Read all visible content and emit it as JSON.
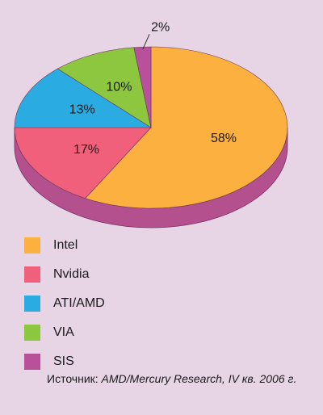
{
  "chart_data": {
    "type": "pie",
    "categories": [
      "Intel",
      "Nvidia",
      "ATI/AMD",
      "VIA",
      "SIS"
    ],
    "values": [
      58,
      17,
      13,
      10,
      2
    ],
    "value_labels": [
      "58%",
      "17%",
      "13%",
      "10%",
      "2%"
    ],
    "colors": [
      "#fbb040",
      "#f0607a",
      "#2aace2",
      "#8dc63f",
      "#b8509c"
    ],
    "legend": "bottom-left",
    "source_label": "Источник:",
    "source": "AMD/Mercury Research, IV кв. 2006 г."
  }
}
